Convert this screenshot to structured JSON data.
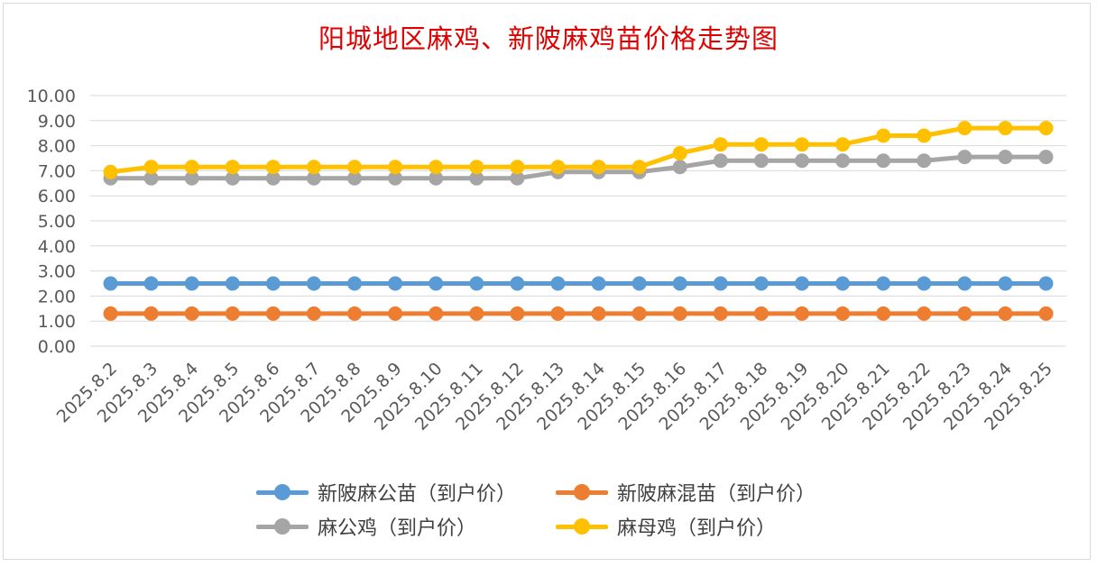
{
  "chart_data": {
    "type": "line",
    "title": "阳城地区麻鸡、新陂麻鸡苗价格走势图",
    "xlabel": "",
    "ylabel": "",
    "ylim": [
      0,
      10
    ],
    "yticks": [
      "0.00",
      "1.00",
      "2.00",
      "3.00",
      "4.00",
      "5.00",
      "6.00",
      "7.00",
      "8.00",
      "9.00",
      "10.00"
    ],
    "categories": [
      "2025.8.2",
      "2025.8.3",
      "2025.8.4",
      "2025.8.5",
      "2025.8.6",
      "2025.8.7",
      "2025.8.8",
      "2025.8.9",
      "2025.8.10",
      "2025.8.11",
      "2025.8.12",
      "2025.8.13",
      "2025.8.14",
      "2025.8.15",
      "2025.8.16",
      "2025.8.17",
      "2025.8.18",
      "2025.8.19",
      "2025.8.20",
      "2025.8.21",
      "2025.8.22",
      "2025.8.23",
      "2025.8.24",
      "2025.8.25"
    ],
    "grid": true,
    "legend_position": "bottom",
    "series": [
      {
        "name": "新陂麻公苗（到户价）",
        "color": "#5b9bd5",
        "values": [
          2.5,
          2.5,
          2.5,
          2.5,
          2.5,
          2.5,
          2.5,
          2.5,
          2.5,
          2.5,
          2.5,
          2.5,
          2.5,
          2.5,
          2.5,
          2.5,
          2.5,
          2.5,
          2.5,
          2.5,
          2.5,
          2.5,
          2.5,
          2.5
        ]
      },
      {
        "name": "新陂麻混苗（到户价）",
        "color": "#ed7d31",
        "values": [
          1.3,
          1.3,
          1.3,
          1.3,
          1.3,
          1.3,
          1.3,
          1.3,
          1.3,
          1.3,
          1.3,
          1.3,
          1.3,
          1.3,
          1.3,
          1.3,
          1.3,
          1.3,
          1.3,
          1.3,
          1.3,
          1.3,
          1.3,
          1.3
        ]
      },
      {
        "name": "麻公鸡（到户价）",
        "color": "#a5a5a5",
        "values": [
          6.7,
          6.7,
          6.7,
          6.7,
          6.7,
          6.7,
          6.7,
          6.7,
          6.7,
          6.7,
          6.7,
          6.95,
          6.95,
          6.95,
          7.15,
          7.4,
          7.4,
          7.4,
          7.4,
          7.4,
          7.4,
          7.55,
          7.55,
          7.55
        ]
      },
      {
        "name": "麻母鸡（到户价）",
        "color": "#ffc000",
        "values": [
          6.95,
          7.15,
          7.15,
          7.15,
          7.15,
          7.15,
          7.15,
          7.15,
          7.15,
          7.15,
          7.15,
          7.15,
          7.15,
          7.15,
          7.7,
          8.05,
          8.05,
          8.05,
          8.05,
          8.4,
          8.4,
          8.7,
          8.7,
          8.7
        ]
      }
    ]
  }
}
